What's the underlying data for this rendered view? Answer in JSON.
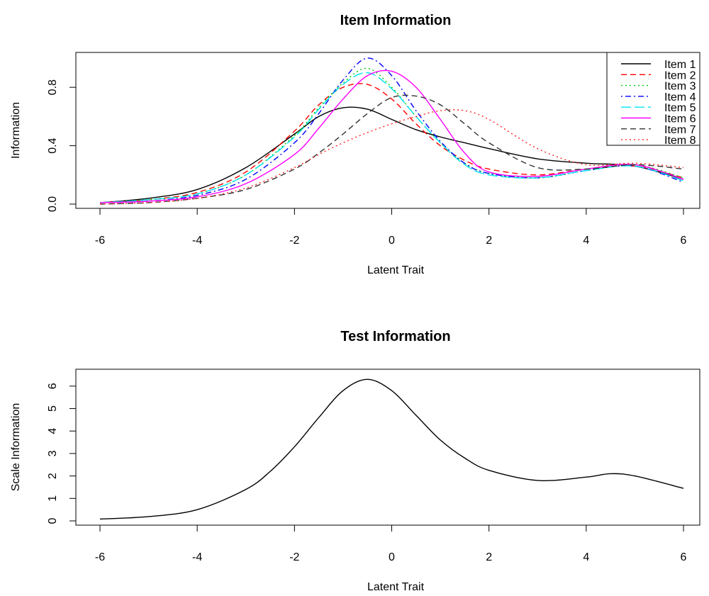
{
  "chart_data": [
    {
      "type": "line",
      "title": "Item Information",
      "xlabel": "Latent Trait",
      "ylabel": "Information",
      "xlim": [
        -6,
        6
      ],
      "ylim": [
        0,
        1.0
      ],
      "xticks": [
        -6,
        -4,
        -2,
        0,
        2,
        4,
        6
      ],
      "yticks": [
        0.0,
        0.4,
        0.8
      ],
      "ytick_labels": [
        "0.0",
        "0.4",
        "0.8"
      ],
      "legend": "top-right",
      "grid": false,
      "x": [
        -6,
        -5,
        -4,
        -3,
        -2,
        -1.5,
        -1,
        -0.5,
        0,
        0.5,
        1,
        1.5,
        2,
        3,
        4,
        5,
        6
      ],
      "series": [
        {
          "name": "Item 1",
          "color": "#000000",
          "dash": "solid",
          "values": [
            0.01,
            0.04,
            0.1,
            0.25,
            0.48,
            0.6,
            0.66,
            0.65,
            0.58,
            0.51,
            0.46,
            0.42,
            0.38,
            0.31,
            0.28,
            0.26,
            0.17
          ]
        },
        {
          "name": "Item 2",
          "color": "#ff0000",
          "dash": "dashed",
          "values": [
            0.01,
            0.03,
            0.08,
            0.22,
            0.5,
            0.68,
            0.8,
            0.82,
            0.72,
            0.55,
            0.4,
            0.3,
            0.24,
            0.2,
            0.24,
            0.26,
            0.18
          ]
        },
        {
          "name": "Item 3",
          "color": "#00cc00",
          "dash": "dotted",
          "values": [
            0.01,
            0.03,
            0.07,
            0.2,
            0.47,
            0.66,
            0.83,
            0.93,
            0.8,
            0.6,
            0.42,
            0.28,
            0.21,
            0.18,
            0.23,
            0.27,
            0.18
          ]
        },
        {
          "name": "Item 4",
          "color": "#0000ff",
          "dash": "dashdot",
          "values": [
            0.01,
            0.02,
            0.06,
            0.17,
            0.42,
            0.62,
            0.85,
            1.0,
            0.88,
            0.64,
            0.43,
            0.28,
            0.21,
            0.18,
            0.23,
            0.26,
            0.15
          ]
        },
        {
          "name": "Item 5",
          "color": "#00e5ee",
          "dash": "longdash",
          "values": [
            0.01,
            0.03,
            0.07,
            0.2,
            0.46,
            0.65,
            0.82,
            0.9,
            0.79,
            0.6,
            0.42,
            0.27,
            0.2,
            0.18,
            0.23,
            0.26,
            0.16
          ]
        },
        {
          "name": "Item 6",
          "color": "#ff00ff",
          "dash": "solid",
          "values": [
            0.01,
            0.02,
            0.05,
            0.14,
            0.34,
            0.52,
            0.72,
            0.88,
            0.91,
            0.8,
            0.58,
            0.35,
            0.22,
            0.19,
            0.24,
            0.27,
            0.17
          ]
        },
        {
          "name": "Item 7",
          "color": "#333333",
          "dash": "dashed",
          "values": [
            0.0,
            0.01,
            0.04,
            0.1,
            0.24,
            0.35,
            0.48,
            0.62,
            0.73,
            0.74,
            0.68,
            0.55,
            0.42,
            0.25,
            0.24,
            0.27,
            0.24
          ]
        },
        {
          "name": "Item 8",
          "color": "#ff2222",
          "dash": "dotted",
          "values": [
            0.0,
            0.01,
            0.04,
            0.11,
            0.25,
            0.34,
            0.42,
            0.49,
            0.55,
            0.6,
            0.64,
            0.64,
            0.58,
            0.38,
            0.27,
            0.28,
            0.25
          ]
        }
      ]
    },
    {
      "type": "line",
      "title": "Test Information",
      "xlabel": "Latent Trait",
      "ylabel": "Scale Information",
      "xlim": [
        -6,
        6
      ],
      "ylim": [
        0,
        6.5
      ],
      "xticks": [
        -6,
        -4,
        -2,
        0,
        2,
        4,
        6
      ],
      "yticks": [
        0,
        1,
        2,
        3,
        4,
        5,
        6
      ],
      "ytick_labels": [
        "0",
        "1",
        "2",
        "3",
        "4",
        "5",
        "6"
      ],
      "grid": false,
      "x": [
        -6,
        -5,
        -4,
        -3,
        -2.5,
        -2,
        -1.5,
        -1,
        -0.5,
        0,
        0.5,
        1,
        1.5,
        2,
        3,
        4,
        4.5,
        5,
        6
      ],
      "series": [
        {
          "name": "",
          "color": "#000000",
          "dash": "solid",
          "values": [
            0.08,
            0.19,
            0.5,
            1.4,
            2.2,
            3.3,
            4.6,
            5.8,
            6.3,
            5.8,
            4.7,
            3.6,
            2.8,
            2.25,
            1.8,
            1.95,
            2.1,
            2.0,
            1.45
          ]
        }
      ]
    }
  ]
}
